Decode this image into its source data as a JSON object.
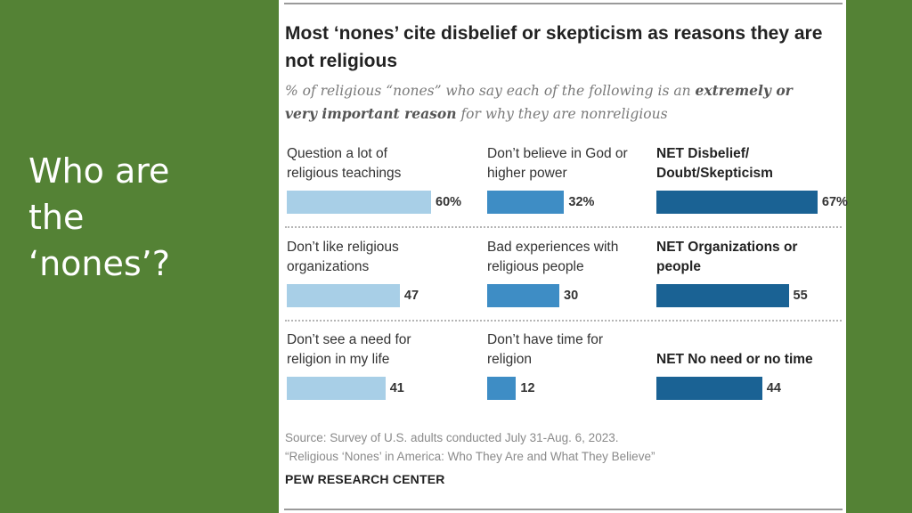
{
  "slide": {
    "title_lines": [
      "Who are",
      "the",
      "‘nones’?"
    ]
  },
  "card": {
    "title": "Most ‘nones’ cite disbelief or skepticism as reasons they are not religious",
    "subtitle_prefix": "% of religious “nones” who say each of the following is an ",
    "subtitle_emphasis": "extremely or very important reason",
    "subtitle_suffix": " for why they are nonreligious",
    "source_line1": "Source: Survey of U.S. adults conducted July 31-Aug. 6, 2023.",
    "source_line2": "“Religious ‘Nones’ in America: Who They Are and What They Believe”",
    "org": "PEW RESEARCH CENTER"
  },
  "colors": {
    "light": "#a8cfe7",
    "mid": "#3e8dc5",
    "dark": "#1a6294"
  },
  "chart_data": {
    "type": "bar",
    "title": "Most ‘nones’ cite disbelief or skepticism as reasons they are not religious",
    "unit": "%",
    "xlim": [
      0,
      100
    ],
    "rows": [
      [
        {
          "label": "Question a lot of religious teachings",
          "value": 60,
          "display": "60%",
          "shade": "light",
          "net": false
        },
        {
          "label": "Don’t believe in God or higher power",
          "value": 32,
          "display": "32%",
          "shade": "mid",
          "net": false
        },
        {
          "label": "NET Disbelief/ Doubt/Skepticism",
          "value": 67,
          "display": "67%",
          "shade": "dark",
          "net": true
        }
      ],
      [
        {
          "label": "Don’t like religious organizations",
          "value": 47,
          "display": "47",
          "shade": "light",
          "net": false
        },
        {
          "label": "Bad experiences with religious people",
          "value": 30,
          "display": "30",
          "shade": "mid",
          "net": false
        },
        {
          "label": "NET Organizations or people",
          "value": 55,
          "display": "55",
          "shade": "dark",
          "net": true
        }
      ],
      [
        {
          "label": "Don’t see a need for religion in my life",
          "value": 41,
          "display": "41",
          "shade": "light",
          "net": false
        },
        {
          "label": "Don’t have time for religion",
          "value": 12,
          "display": "12",
          "shade": "mid",
          "net": false
        },
        {
          "label": "NET No need or no time",
          "value": 44,
          "display": "44",
          "shade": "dark",
          "net": true
        }
      ]
    ]
  }
}
